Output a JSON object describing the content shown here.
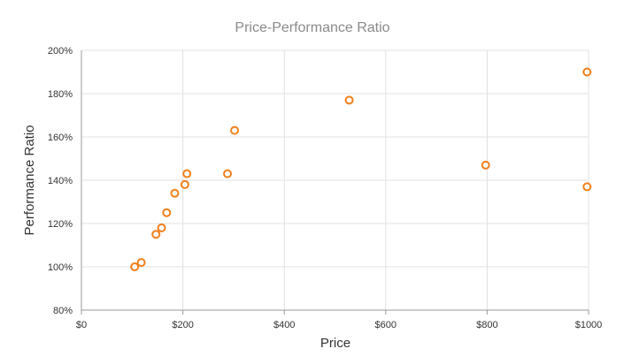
{
  "chart_data": {
    "type": "scatter",
    "title": "Price-Performance Ratio",
    "xlabel": "Price",
    "ylabel": "Performance Ratio",
    "xlim": [
      0,
      1000
    ],
    "ylim": [
      80,
      200
    ],
    "x_ticks": [
      0,
      200,
      400,
      600,
      800,
      1000
    ],
    "x_tick_labels": [
      "$0",
      "$200",
      "$400",
      "$600",
      "$800",
      "$1000"
    ],
    "y_ticks": [
      80,
      100,
      120,
      140,
      160,
      180,
      200
    ],
    "y_tick_labels": [
      "80%",
      "100%",
      "120%",
      "140%",
      "160%",
      "180%",
      "200%"
    ],
    "grid": true,
    "legend": "none",
    "marker_color": "#f07f1b",
    "grid_color": "#e0e0e0",
    "axis_color": "#999999",
    "series": [
      {
        "points": [
          {
            "x": 105,
            "y": 100
          },
          {
            "x": 118,
            "y": 102
          },
          {
            "x": 147,
            "y": 115
          },
          {
            "x": 158,
            "y": 118
          },
          {
            "x": 168,
            "y": 125
          },
          {
            "x": 184,
            "y": 134
          },
          {
            "x": 204,
            "y": 138
          },
          {
            "x": 208,
            "y": 143
          },
          {
            "x": 288,
            "y": 143
          },
          {
            "x": 302,
            "y": 163
          },
          {
            "x": 528,
            "y": 177
          },
          {
            "x": 797,
            "y": 147
          },
          {
            "x": 997,
            "y": 137
          },
          {
            "x": 997,
            "y": 190
          }
        ]
      }
    ]
  }
}
